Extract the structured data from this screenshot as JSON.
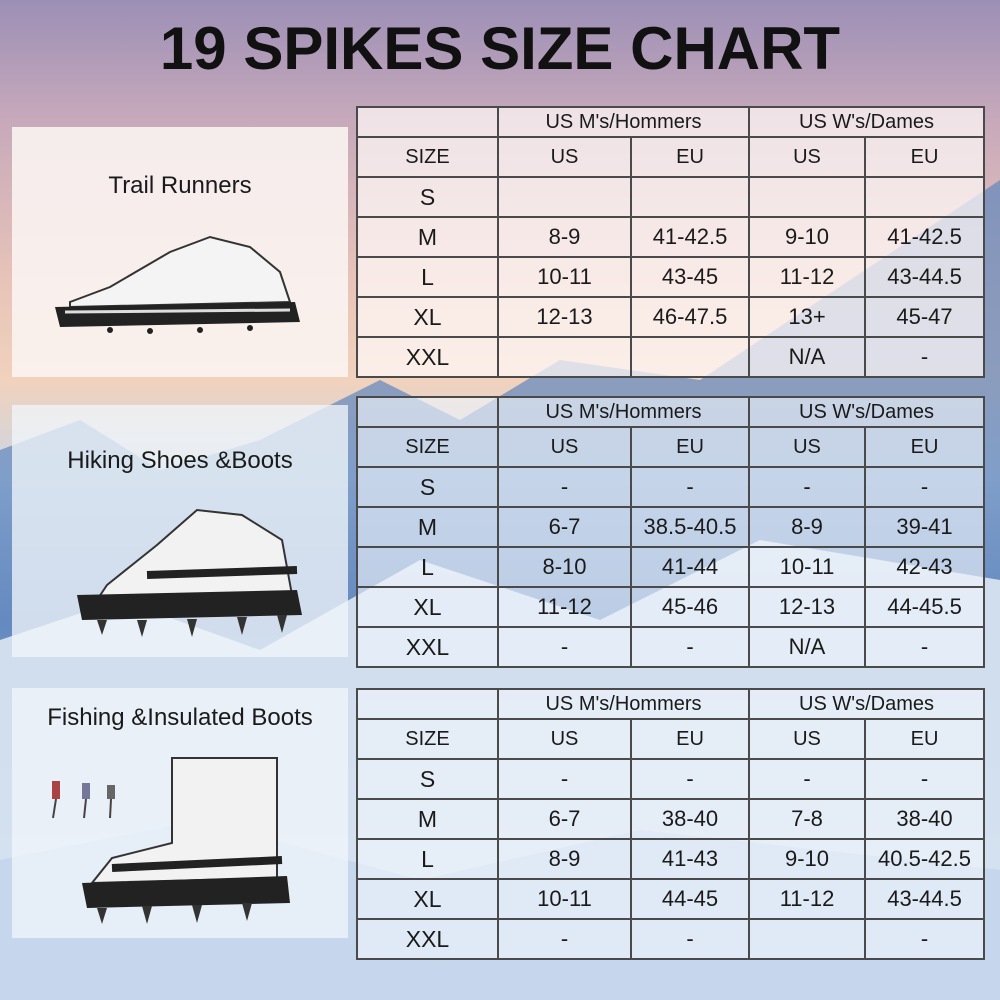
{
  "title": "19 SPIKES SIZE CHART",
  "colors": {
    "title": "#111111",
    "border": "#4a4a4a"
  },
  "group_headers": [
    "US M's/Hommers",
    "US W's/Dames"
  ],
  "sub_headers": [
    "SIZE",
    "US",
    "EU",
    "US",
    "EU"
  ],
  "sections": [
    {
      "label": "Trail Runners",
      "icon": "trail-runner-shoe-icon",
      "rows": [
        [
          "S",
          "",
          "",
          "",
          ""
        ],
        [
          "M",
          "8-9",
          "41-42.5",
          "9-10",
          "41-42.5"
        ],
        [
          "L",
          "10-11",
          "43-45",
          "11-12",
          "43-44.5"
        ],
        [
          "XL",
          "12-13",
          "46-47.5",
          "13+",
          "45-47"
        ],
        [
          "XXL",
          "",
          "",
          "N/A",
          "-"
        ]
      ]
    },
    {
      "label": "Hiking Shoes &Boots",
      "icon": "hiking-boot-icon",
      "rows": [
        [
          "S",
          "-",
          "-",
          "-",
          "-"
        ],
        [
          "M",
          "6-7",
          "38.5-40.5",
          "8-9",
          "39-41"
        ],
        [
          "L",
          "8-10",
          "41-44",
          "10-11",
          "42-43"
        ],
        [
          "XL",
          "11-12",
          "45-46",
          "12-13",
          "44-45.5"
        ],
        [
          "XXL",
          "-",
          "-",
          "N/A",
          "-"
        ]
      ]
    },
    {
      "label": "Fishing &Insulated Boots",
      "icon": "insulated-boot-icon",
      "rows": [
        [
          "S",
          "-",
          "-",
          "-",
          "-"
        ],
        [
          "M",
          "6-7",
          "38-40",
          "7-8",
          "38-40"
        ],
        [
          "L",
          "8-9",
          "41-43",
          "9-10",
          "40.5-42.5"
        ],
        [
          "XL",
          "10-11",
          "44-45",
          "11-12",
          "43-44.5"
        ],
        [
          "XXL",
          "-",
          "-",
          "",
          "-"
        ]
      ]
    }
  ]
}
